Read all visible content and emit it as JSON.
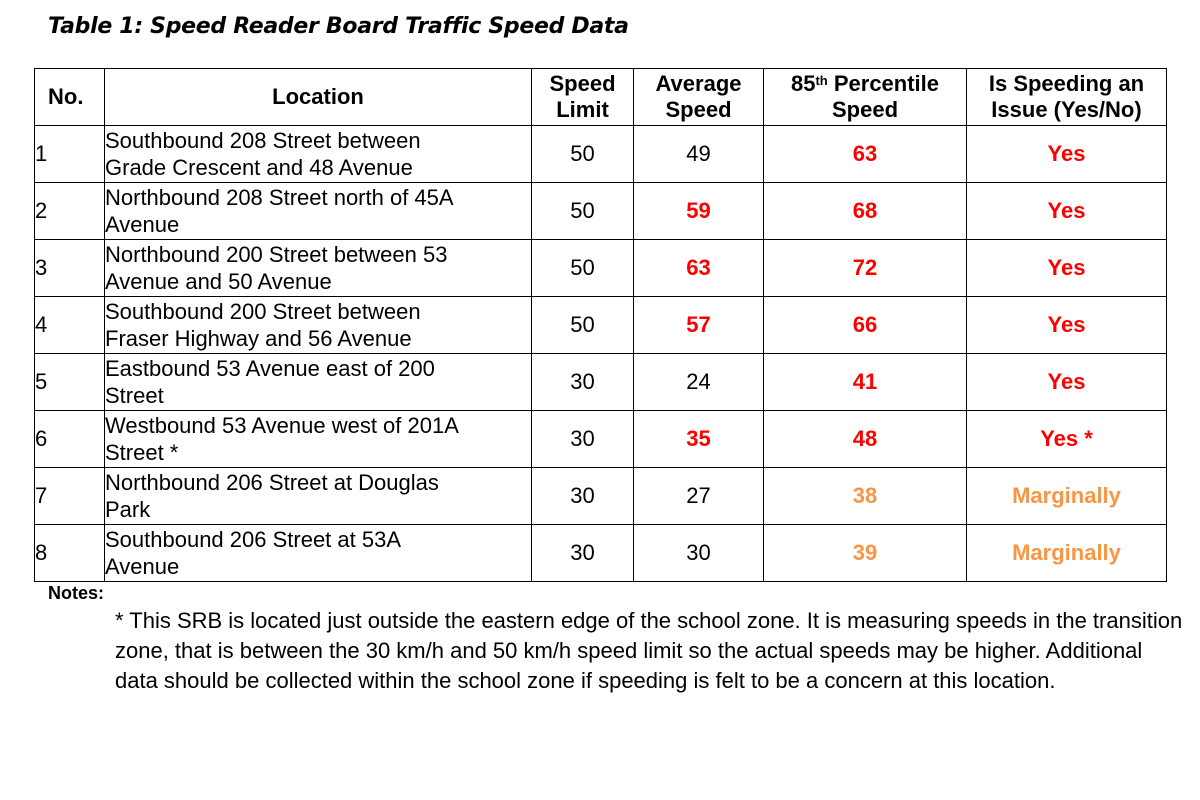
{
  "caption": "Table 1: Speed Reader Board Traffic Speed Data",
  "headers": {
    "no": "No.",
    "location": "Location",
    "speed_limit_1": "Speed",
    "speed_limit_2": "Limit",
    "avg_speed_1": "Average",
    "avg_speed_2": "Speed",
    "p85_pre": "85",
    "p85_sup": "th",
    "p85_post": " Percentile",
    "p85_line2": "Speed",
    "issue_1": "Is Speeding an",
    "issue_2": "Issue (Yes/No)"
  },
  "colors": {
    "exceed": "#ff0000",
    "marginal": "#f79646",
    "normal": "#000000"
  },
  "rows": [
    {
      "no": "1",
      "loc1": "Southbound 208 Street between",
      "loc2": "Grade Crescent and 48 Avenue",
      "limit": "50",
      "avg": "49",
      "avg_style": "normal",
      "p85": "63",
      "p85_style": "red",
      "issue": "Yes",
      "issue_style": "red"
    },
    {
      "no": "2",
      "loc1": "Northbound 208 Street north of 45A",
      "loc2": "Avenue",
      "limit": "50",
      "avg": "59",
      "avg_style": "red",
      "p85": "68",
      "p85_style": "red",
      "issue": "Yes",
      "issue_style": "red"
    },
    {
      "no": "3",
      "loc1": "Northbound 200 Street between 53",
      "loc2": "Avenue and 50 Avenue",
      "limit": "50",
      "avg": "63",
      "avg_style": "red",
      "p85": "72",
      "p85_style": "red",
      "issue": "Yes",
      "issue_style": "red"
    },
    {
      "no": "4",
      "loc1": "Southbound 200 Street between",
      "loc2": "Fraser Highway and 56 Avenue",
      "limit": "50",
      "avg": "57",
      "avg_style": "red",
      "p85": "66",
      "p85_style": "red",
      "issue": "Yes",
      "issue_style": "red"
    },
    {
      "no": "5",
      "loc1": "Eastbound 53 Avenue east of 200",
      "loc2": "Street",
      "limit": "30",
      "avg": "24",
      "avg_style": "normal",
      "p85": "41",
      "p85_style": "red",
      "issue": "Yes",
      "issue_style": "red"
    },
    {
      "no": "6",
      "loc1": "Westbound 53 Avenue west of 201A",
      "loc2": "Street *",
      "limit": "30",
      "avg": "35",
      "avg_style": "red",
      "p85": "48",
      "p85_style": "red",
      "issue": "Yes *",
      "issue_style": "red"
    },
    {
      "no": "7",
      "loc1": "Northbound 206 Street at Douglas",
      "loc2": "Park",
      "limit": "30",
      "avg": "27",
      "avg_style": "normal",
      "p85": "38",
      "p85_style": "orange",
      "issue": "Marginally",
      "issue_style": "orange"
    },
    {
      "no": "8",
      "loc1": "Southbound 206 Street at 53A",
      "loc2": "Avenue",
      "limit": "30",
      "avg": "30",
      "avg_style": "normal",
      "p85": "39",
      "p85_style": "orange",
      "issue": "Marginally",
      "issue_style": "orange"
    }
  ],
  "notes": {
    "label": "Notes:",
    "text": "* This SRB is located just outside the eastern edge of the school zone. It is measuring speeds in the transition zone, that is between the 30 km/h and 50 km/h speed limit so the actual speeds may be higher. Additional data should be collected within the school zone if speeding is felt to be a concern at this location."
  }
}
